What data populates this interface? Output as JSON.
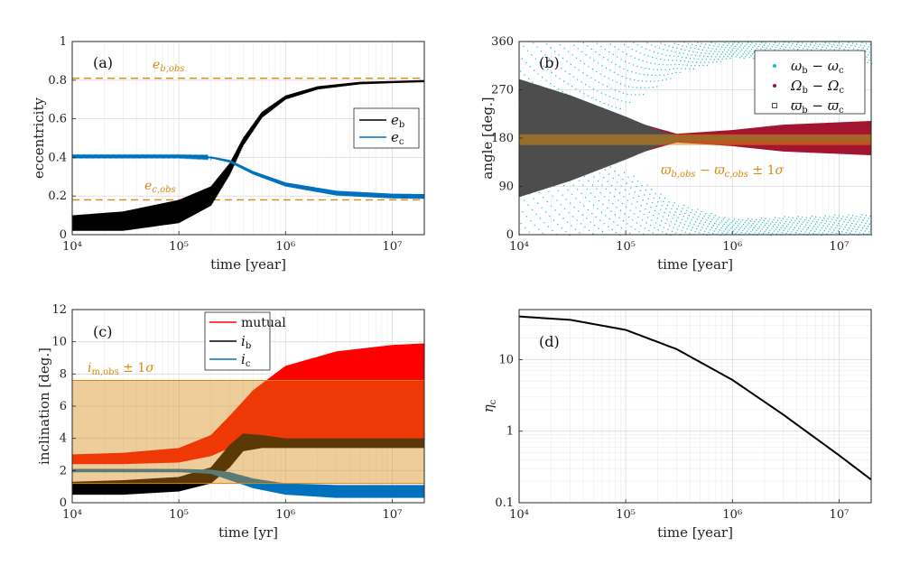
{
  "chart_data": [
    {
      "panel": "(a)",
      "type": "line",
      "xscale": "log",
      "xlim": [
        10000,
        20000000
      ],
      "ylim": [
        0,
        1
      ],
      "xticks": [
        10000,
        100000,
        1000000,
        10000000
      ],
      "xtick_labels": [
        "10⁴",
        "10⁵",
        "10⁶",
        "10⁷"
      ],
      "yticks": [
        0,
        0.2,
        0.4,
        0.6,
        0.8,
        1
      ],
      "ytick_labels": [
        "0",
        "0.2",
        "0.4",
        "0.6",
        "0.8",
        "1"
      ],
      "xlabel": "time [year]",
      "ylabel": "eccentricity",
      "grid": true,
      "legend_position": "upper-right",
      "series": [
        {
          "name": "e_b",
          "label": "e_b",
          "color": "#000000",
          "x": [
            10000,
            30000,
            100000,
            200000,
            300000,
            400000,
            600000,
            1000000,
            2000000,
            5000000,
            10000000,
            20000000
          ],
          "y": [
            0.06,
            0.07,
            0.12,
            0.2,
            0.34,
            0.48,
            0.62,
            0.71,
            0.76,
            0.785,
            0.79,
            0.795
          ],
          "oscillation": [
            0.04,
            0.05,
            0.06,
            0.05,
            0.03,
            0.02,
            0.015,
            0.01,
            0.008,
            0.006,
            0.005,
            0.005
          ]
        },
        {
          "name": "e_c",
          "label": "e_c",
          "color": "#0072BD",
          "x": [
            10000,
            100000,
            200000,
            300000,
            500000,
            1000000,
            3000000,
            10000000,
            20000000
          ],
          "y": [
            0.405,
            0.405,
            0.4,
            0.38,
            0.32,
            0.26,
            0.215,
            0.2,
            0.198
          ],
          "oscillation": [
            0.003,
            0.003,
            0.004,
            0.006,
            0.008,
            0.01,
            0.012,
            0.012,
            0.012
          ]
        }
      ],
      "hlines": [
        {
          "name": "e_b,obs",
          "y": 0.81,
          "color": "#D68910",
          "label": "e_b,obs"
        },
        {
          "name": "e_c,obs",
          "y": 0.18,
          "color": "#D68910",
          "label": "e_c,obs"
        }
      ],
      "annotations": [
        "e_b,obs",
        "e_c,obs"
      ]
    },
    {
      "panel": "(b)",
      "type": "scatter",
      "xscale": "log",
      "xlim": [
        10000,
        20000000
      ],
      "ylim": [
        0,
        360
      ],
      "xticks": [
        10000,
        100000,
        1000000,
        10000000
      ],
      "xtick_labels": [
        "10⁴",
        "10⁵",
        "10⁶",
        "10⁷"
      ],
      "yticks": [
        0,
        90,
        180,
        270,
        360
      ],
      "ytick_labels": [
        "0",
        "90",
        "180",
        "270",
        "360"
      ],
      "xlabel": "time [year]",
      "ylabel": "angle [deg.]",
      "grid": true,
      "legend_position": "upper-right",
      "series": [
        {
          "name": "ω_b − ω_c",
          "label": "ω_b − ω_c",
          "color": "#17BECF",
          "x": [
            10000,
            30000,
            100000,
            300000,
            1000000,
            3000000,
            20000000
          ],
          "lower_band_top": [
            200,
            160,
            120,
            60,
            30,
            35,
            40
          ],
          "upper_band_bottom": [
            150,
            200,
            240,
            300,
            330,
            325,
            320
          ]
        },
        {
          "name": "Ω_b − Ω_c",
          "label": "Ω_b − Ω_c",
          "color": "#A2142F",
          "x": [
            10000,
            30000,
            100000,
            300000,
            1000000,
            3000000,
            20000000
          ],
          "half_width": [
            90,
            70,
            35,
            8,
            15,
            25,
            32
          ]
        },
        {
          "name": "ϖ_b − ϖ_c",
          "label": "ϖ_b − ϖ_c",
          "color": "#4D4D4D",
          "x": [
            10000,
            30000,
            100000,
            200000,
            300000
          ],
          "half_width": [
            110,
            80,
            40,
            15,
            5
          ]
        }
      ],
      "band": {
        "name": "ϖ_b,obs − ϖ_c,obs ± 1σ",
        "center": 177,
        "half_width": 10,
        "color": "#D68910"
      },
      "annotations": [
        "ϖ_b,obs − ϖ_c,obs ± 1σ"
      ]
    },
    {
      "panel": "(c)",
      "type": "area",
      "xscale": "log",
      "xlim": [
        10000,
        20000000
      ],
      "ylim": [
        0,
        12
      ],
      "xticks": [
        10000,
        100000,
        1000000,
        10000000
      ],
      "xtick_labels": [
        "10⁴",
        "10⁵",
        "10⁶",
        "10⁷"
      ],
      "yticks": [
        0,
        2,
        4,
        6,
        8,
        10,
        12
      ],
      "ytick_labels": [
        "0",
        "2",
        "4",
        "6",
        "8",
        "10",
        "12"
      ],
      "xlabel": "time [yr]",
      "ylabel": "inclination [deg.]",
      "grid": true,
      "legend_position": "top-center",
      "series": [
        {
          "name": "mutual",
          "label": "mutual",
          "color": "#FF0000",
          "x": [
            10000,
            30000,
            100000,
            200000,
            300000,
            500000,
            1000000,
            3000000,
            10000000,
            20000000
          ],
          "low": [
            2.4,
            2.4,
            2.5,
            2.9,
            3.4,
            3.8,
            3.8,
            3.7,
            3.7,
            3.7
          ],
          "high": [
            3.0,
            3.1,
            3.4,
            4.2,
            5.4,
            7.0,
            8.5,
            9.4,
            9.8,
            9.9
          ]
        },
        {
          "name": "i_b",
          "label": "i_b",
          "color": "#000000",
          "x": [
            10000,
            30000,
            100000,
            200000,
            300000,
            400000,
            600000,
            1000000,
            20000000
          ],
          "low": [
            0.5,
            0.5,
            0.7,
            1.2,
            2.2,
            3.2,
            3.4,
            3.4,
            3.4
          ],
          "high": [
            1.3,
            1.4,
            1.6,
            2.2,
            3.6,
            4.3,
            4.2,
            4.0,
            4.0
          ]
        },
        {
          "name": "i_c",
          "label": "i_c",
          "color": "#0072BD",
          "x": [
            10000,
            100000,
            200000,
            300000,
            500000,
            1000000,
            3000000,
            20000000
          ],
          "low": [
            1.9,
            1.9,
            1.8,
            1.4,
            0.9,
            0.5,
            0.3,
            0.3
          ],
          "high": [
            2.1,
            2.1,
            2.05,
            1.9,
            1.5,
            1.2,
            1.1,
            1.1
          ]
        }
      ],
      "band": {
        "name": "i_m,obs ± 1σ",
        "low": 1.2,
        "high": 7.6,
        "color": "#D68910"
      },
      "annotations": [
        "i_m,obs ± 1σ"
      ]
    },
    {
      "panel": "(d)",
      "type": "line",
      "xscale": "log",
      "yscale": "log",
      "xlim": [
        10000,
        20000000
      ],
      "ylim": [
        0.1,
        50
      ],
      "xticks": [
        10000,
        100000,
        1000000,
        10000000
      ],
      "xtick_labels": [
        "10⁴",
        "10⁵",
        "10⁶",
        "10⁷"
      ],
      "yticks": [
        0.1,
        1,
        10
      ],
      "ytick_labels": [
        "0.1",
        "1",
        "10"
      ],
      "xlabel": "time [year]",
      "ylabel": "η_c",
      "grid": true,
      "series": [
        {
          "name": "η_c",
          "color": "#000000",
          "x": [
            10000,
            30000,
            100000,
            300000,
            1000000,
            3000000,
            10000000,
            20000000
          ],
          "y": [
            40,
            36,
            26,
            14,
            5.2,
            1.7,
            0.46,
            0.21
          ]
        }
      ]
    }
  ]
}
